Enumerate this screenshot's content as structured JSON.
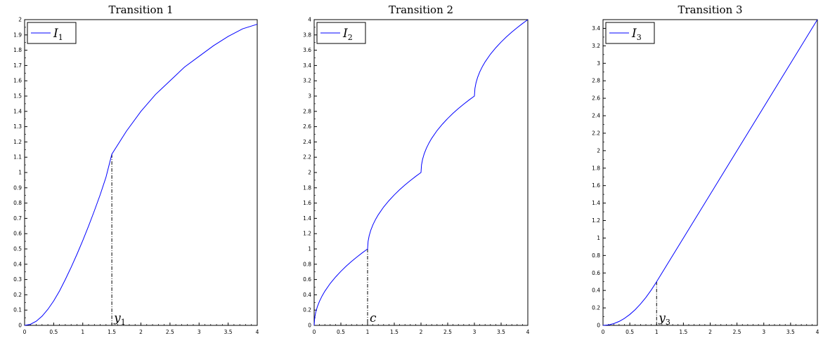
{
  "chart_data": [
    {
      "type": "line",
      "title": "Transition 1",
      "xlim": [
        0,
        4
      ],
      "ylim": [
        0,
        2
      ],
      "x_ticks": [
        "0",
        "0.5",
        "1",
        "1.5",
        "2",
        "2.5",
        "3",
        "3.5",
        "4"
      ],
      "y_ticks": [
        "0",
        "0.1",
        "0.2",
        "0.3",
        "0.4",
        "0.5",
        "0.6",
        "0.7",
        "0.8",
        "0.9",
        "1",
        "1.1",
        "1.2",
        "1.3",
        "1.4",
        "1.5",
        "1.6",
        "1.7",
        "1.8",
        "1.9",
        "2"
      ],
      "legend": {
        "placement": "top-left",
        "label": "I",
        "subscript": "1"
      },
      "series": [
        {
          "name": "I1",
          "color": "#0000ff",
          "x": [
            0,
            0.1,
            0.2,
            0.3,
            0.4,
            0.5,
            0.6,
            0.7,
            0.8,
            0.9,
            1.0,
            1.1,
            1.2,
            1.3,
            1.4,
            1.5,
            1.75,
            2.0,
            2.25,
            2.5,
            2.75,
            3.0,
            3.25,
            3.5,
            3.75,
            4.0
          ],
          "y": [
            0,
            0.007,
            0.027,
            0.06,
            0.105,
            0.16,
            0.225,
            0.3,
            0.38,
            0.465,
            0.555,
            0.65,
            0.75,
            0.855,
            0.97,
            1.12,
            1.27,
            1.4,
            1.51,
            1.6,
            1.69,
            1.76,
            1.83,
            1.89,
            1.94,
            1.97
          ]
        }
      ],
      "annotation": {
        "x": 1.5,
        "y": 1.12,
        "label": "y",
        "subscript": "1"
      }
    },
    {
      "type": "line",
      "title": "Transition 2",
      "xlim": [
        0,
        4
      ],
      "ylim": [
        0,
        4
      ],
      "x_ticks": [
        "0",
        "0.5",
        "1",
        "1.5",
        "2",
        "2.5",
        "3",
        "3.5",
        "4"
      ],
      "y_ticks": [
        "0",
        "0.2",
        "0.4",
        "0.6",
        "0.8",
        "1",
        "1.2",
        "1.4",
        "1.6",
        "1.8",
        "2",
        "2.2",
        "2.4",
        "2.6",
        "2.8",
        "3",
        "3.2",
        "3.4",
        "3.6",
        "3.8",
        "4"
      ],
      "legend": {
        "placement": "top-left",
        "label": "I",
        "subscript": "2"
      },
      "series": [
        {
          "name": "I2",
          "color": "#0000ff",
          "x": [
            0,
            0.01,
            0.03,
            0.06,
            0.1,
            0.15,
            0.2,
            0.3,
            0.4,
            0.5,
            0.6,
            0.7,
            0.8,
            0.9,
            1.0,
            1.01,
            1.03,
            1.06,
            1.1,
            1.15,
            1.2,
            1.3,
            1.4,
            1.5,
            1.6,
            1.7,
            1.8,
            1.9,
            2.0,
            2.01,
            2.03,
            2.06,
            2.1,
            2.15,
            2.2,
            2.3,
            2.4,
            2.5,
            2.6,
            2.7,
            2.8,
            2.9,
            3.0,
            3.01,
            3.03,
            3.06,
            3.1,
            3.15,
            3.2,
            3.3,
            3.4,
            3.5,
            3.6,
            3.7,
            3.8,
            3.9,
            4.0
          ],
          "y": [
            0,
            0.1,
            0.173,
            0.245,
            0.316,
            0.387,
            0.447,
            0.548,
            0.632,
            0.707,
            0.775,
            0.837,
            0.894,
            0.949,
            1.0,
            1.1,
            1.173,
            1.245,
            1.316,
            1.387,
            1.447,
            1.548,
            1.632,
            1.707,
            1.775,
            1.837,
            1.894,
            1.949,
            2.0,
            2.1,
            2.173,
            2.245,
            2.316,
            2.387,
            2.447,
            2.548,
            2.632,
            2.707,
            2.775,
            2.837,
            2.894,
            2.949,
            3.0,
            3.1,
            3.173,
            3.245,
            3.316,
            3.387,
            3.447,
            3.548,
            3.632,
            3.707,
            3.775,
            3.837,
            3.894,
            3.949,
            4.0
          ]
        }
      ],
      "annotation": {
        "x": 1.0,
        "y": 1.0,
        "label": "c",
        "subscript": ""
      }
    },
    {
      "type": "line",
      "title": "Transition 3",
      "xlim": [
        0,
        4
      ],
      "ylim": [
        0,
        3.5
      ],
      "x_ticks": [
        "0",
        "0.5",
        "1",
        "1.5",
        "2",
        "2.5",
        "3",
        "3.5",
        "4"
      ],
      "y_ticks": [
        "0",
        "0.2",
        "0.4",
        "0.6",
        "0.8",
        "1",
        "1.2",
        "1.4",
        "1.6",
        "1.8",
        "2",
        "2.2",
        "2.4",
        "2.6",
        "2.8",
        "3",
        "3.2",
        "3.4"
      ],
      "legend": {
        "placement": "top-left",
        "label": "I",
        "subscript": "3"
      },
      "series": [
        {
          "name": "I3",
          "color": "#0000ff",
          "x": [
            0,
            0.1,
            0.2,
            0.3,
            0.4,
            0.5,
            0.6,
            0.7,
            0.8,
            0.9,
            1.0,
            4.0
          ],
          "y": [
            0,
            0.005,
            0.02,
            0.045,
            0.08,
            0.125,
            0.18,
            0.245,
            0.32,
            0.405,
            0.5,
            3.5
          ]
        }
      ],
      "annotation": {
        "x": 1.0,
        "y": 0.5,
        "label": "y",
        "subscript": "3"
      }
    }
  ]
}
